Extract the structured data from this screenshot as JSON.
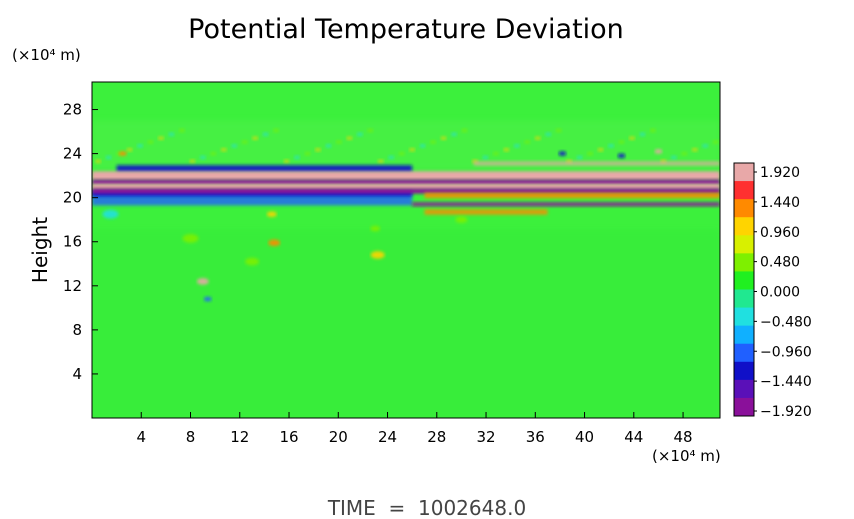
{
  "chart_data": {
    "type": "heatmap",
    "title": "Potential Temperature Deviation",
    "ylabel": "Height",
    "xlabel": "",
    "x_unit": "(×10⁴ m)",
    "y_unit": "(×10⁴ m)",
    "x_ticks": [
      "4",
      "8",
      "12",
      "16",
      "20",
      "24",
      "28",
      "32",
      "36",
      "40",
      "44",
      "48"
    ],
    "x_tick_values": [
      4,
      8,
      12,
      16,
      20,
      24,
      28,
      32,
      36,
      40,
      44,
      48
    ],
    "y_ticks": [
      "4",
      "8",
      "12",
      "16",
      "20",
      "24",
      "28"
    ],
    "y_tick_values": [
      4,
      8,
      12,
      16,
      20,
      24,
      28
    ],
    "xlim": [
      0,
      51
    ],
    "ylim": [
      0,
      30.5
    ],
    "colorbar": {
      "labels": [
        "1.920",
        "1.440",
        "0.960",
        "0.480",
        "0.000",
        "−0.480",
        "−0.960",
        "−1.440",
        "−1.920"
      ],
      "values": [
        1.92,
        1.44,
        0.96,
        0.48,
        0.0,
        -0.48,
        -0.96,
        -1.44,
        -1.92
      ],
      "colors": [
        "#e8a8a8",
        "#ff3030",
        "#ff8a00",
        "#ffd400",
        "#d8f000",
        "#7ef000",
        "#20f020",
        "#20e890",
        "#20e0e0",
        "#10b0ff",
        "#2060ff",
        "#1010c8",
        "#5a10b8",
        "#8a109a"
      ]
    },
    "background_color": "#3cf03c",
    "features": [
      {
        "kind": "band",
        "y": 21.6,
        "value": 1.92
      },
      {
        "kind": "band",
        "y": 20.9,
        "value": -1.92
      },
      {
        "kind": "band",
        "y": 21.2,
        "value": 1.44
      },
      {
        "kind": "band",
        "y": 22.6,
        "value": -1.44
      },
      {
        "kind": "band",
        "y": 19.9,
        "value": -0.96
      }
    ]
  },
  "footer": {
    "time_text": "TIME  =  1002648.0"
  }
}
